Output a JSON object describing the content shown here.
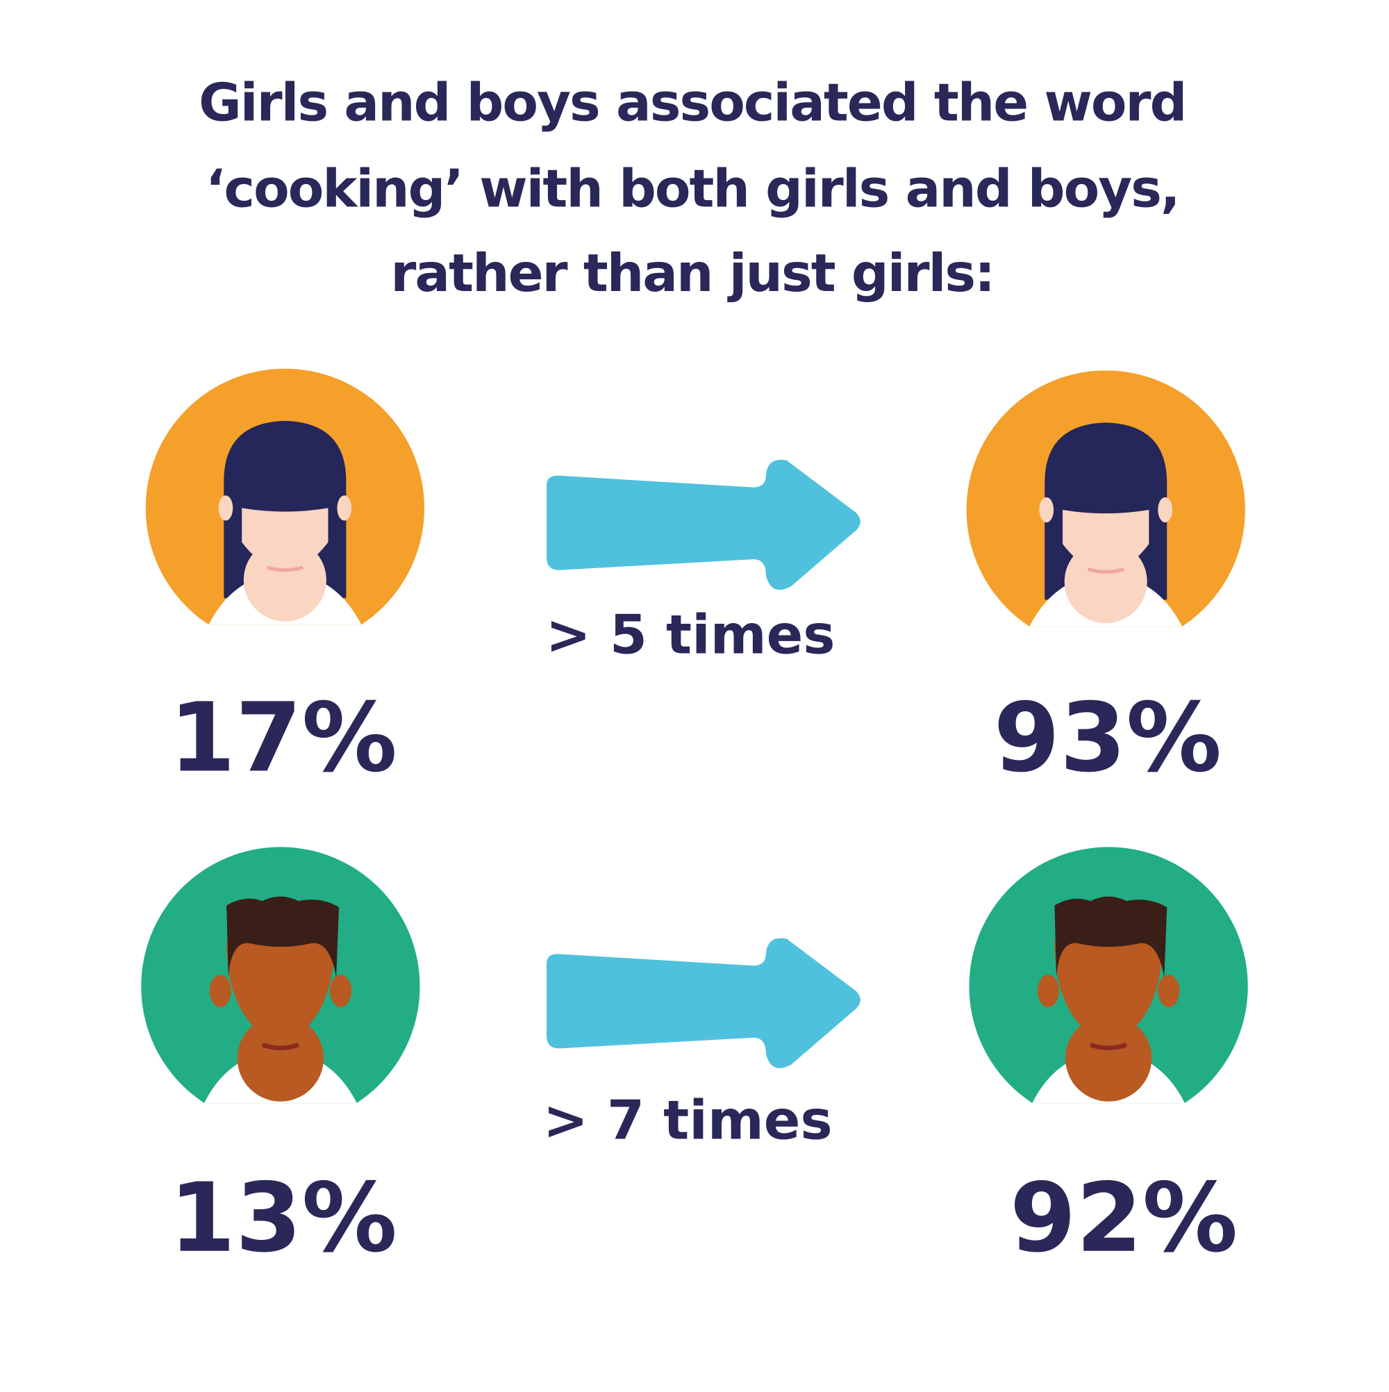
{
  "title": {
    "lines": [
      "Girls and boys associated the word",
      "‘cooking’ with both girls and boys,",
      "rather than just girls:"
    ]
  },
  "rows": [
    {
      "before": "17%",
      "change": "> 5 times",
      "after": "93%"
    },
    {
      "before": "13%",
      "change": "> 7 times",
      "after": "92%"
    }
  ]
}
